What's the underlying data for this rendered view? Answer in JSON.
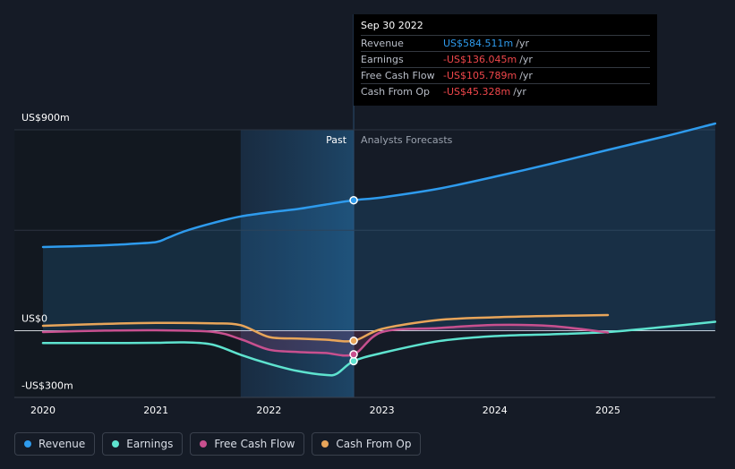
{
  "tooltip": {
    "date": "Sep 30 2022",
    "rows": [
      {
        "label": "Revenue",
        "value": "US$584.511m",
        "unit": "/yr",
        "color": "#2e9bed"
      },
      {
        "label": "Earnings",
        "value": "-US$136.045m",
        "unit": "/yr",
        "color": "#f0474b"
      },
      {
        "label": "Free Cash Flow",
        "value": "-US$105.789m",
        "unit": "/yr",
        "color": "#f0474b"
      },
      {
        "label": "Cash From Op",
        "value": "-US$45.328m",
        "unit": "/yr",
        "color": "#f0474b"
      }
    ]
  },
  "regions": {
    "past": "Past",
    "forecast": "Analysts Forecasts"
  },
  "legend": [
    {
      "label": "Revenue",
      "color": "#2e9bed"
    },
    {
      "label": "Earnings",
      "color": "#5ee3cf"
    },
    {
      "label": "Free Cash Flow",
      "color": "#c8508f"
    },
    {
      "label": "Cash From Op",
      "color": "#e8a55a"
    }
  ],
  "chart_data": {
    "type": "line",
    "ylim": [
      -300,
      900
    ],
    "xlim": [
      2019.75,
      2025.95
    ],
    "y_tick_labels": [
      {
        "value": 900,
        "label": "US$900m"
      },
      {
        "value": 0,
        "label": "US$0"
      },
      {
        "value": -300,
        "label": "-US$300m"
      }
    ],
    "x_ticks": [
      2020,
      2021,
      2022,
      2023,
      2024,
      2025
    ],
    "highlight_range": [
      2021.75,
      2022.75
    ],
    "divider_x": 2022.75,
    "marker_x": 2022.75,
    "series": [
      {
        "name": "Revenue",
        "color": "#2e9bed",
        "fill": true,
        "points": [
          [
            2020.0,
            375
          ],
          [
            2020.25,
            378
          ],
          [
            2020.5,
            382
          ],
          [
            2020.75,
            388
          ],
          [
            2021.0,
            397
          ],
          [
            2021.1,
            415
          ],
          [
            2021.25,
            445
          ],
          [
            2021.5,
            482
          ],
          [
            2021.75,
            512
          ],
          [
            2022.0,
            530
          ],
          [
            2022.25,
            545
          ],
          [
            2022.5,
            565
          ],
          [
            2022.75,
            584.5
          ],
          [
            2023.0,
            597
          ],
          [
            2023.5,
            636
          ],
          [
            2024.0,
            690
          ],
          [
            2024.5,
            748
          ],
          [
            2025.0,
            810
          ],
          [
            2025.5,
            870
          ],
          [
            2025.95,
            928
          ]
        ]
      },
      {
        "name": "Earnings",
        "color": "#5ee3cf",
        "fill": false,
        "points": [
          [
            2020.0,
            -55
          ],
          [
            2020.25,
            -55
          ],
          [
            2020.5,
            -55
          ],
          [
            2020.75,
            -55
          ],
          [
            2021.0,
            -54
          ],
          [
            2021.25,
            -52
          ],
          [
            2021.5,
            -62
          ],
          [
            2021.75,
            -108
          ],
          [
            2022.0,
            -148
          ],
          [
            2022.25,
            -180
          ],
          [
            2022.5,
            -198
          ],
          [
            2022.6,
            -193
          ],
          [
            2022.75,
            -136
          ],
          [
            2023.0,
            -100
          ],
          [
            2023.5,
            -47
          ],
          [
            2024.0,
            -24
          ],
          [
            2024.5,
            -16
          ],
          [
            2025.0,
            -6
          ],
          [
            2025.5,
            17
          ],
          [
            2025.95,
            40
          ]
        ]
      },
      {
        "name": "Free Cash Flow",
        "color": "#c8508f",
        "fill": false,
        "points": [
          [
            2020.0,
            -6
          ],
          [
            2020.5,
            0
          ],
          [
            2021.0,
            2
          ],
          [
            2021.5,
            -5
          ],
          [
            2021.75,
            -38
          ],
          [
            2022.0,
            -85
          ],
          [
            2022.25,
            -95
          ],
          [
            2022.5,
            -100
          ],
          [
            2022.75,
            -105.8
          ],
          [
            2023.0,
            -6
          ],
          [
            2023.5,
            12
          ],
          [
            2024.0,
            26
          ],
          [
            2024.5,
            21
          ],
          [
            2025.0,
            -8
          ]
        ]
      },
      {
        "name": "Cash From Op",
        "color": "#e8a55a",
        "fill": false,
        "points": [
          [
            2020.0,
            22
          ],
          [
            2020.5,
            30
          ],
          [
            2021.0,
            35
          ],
          [
            2021.5,
            33
          ],
          [
            2021.75,
            25
          ],
          [
            2022.0,
            -28
          ],
          [
            2022.25,
            -35
          ],
          [
            2022.5,
            -40
          ],
          [
            2022.75,
            -45.3
          ],
          [
            2023.0,
            8
          ],
          [
            2023.5,
            48
          ],
          [
            2024.0,
            60
          ],
          [
            2024.5,
            66
          ],
          [
            2025.0,
            70
          ]
        ]
      }
    ]
  }
}
